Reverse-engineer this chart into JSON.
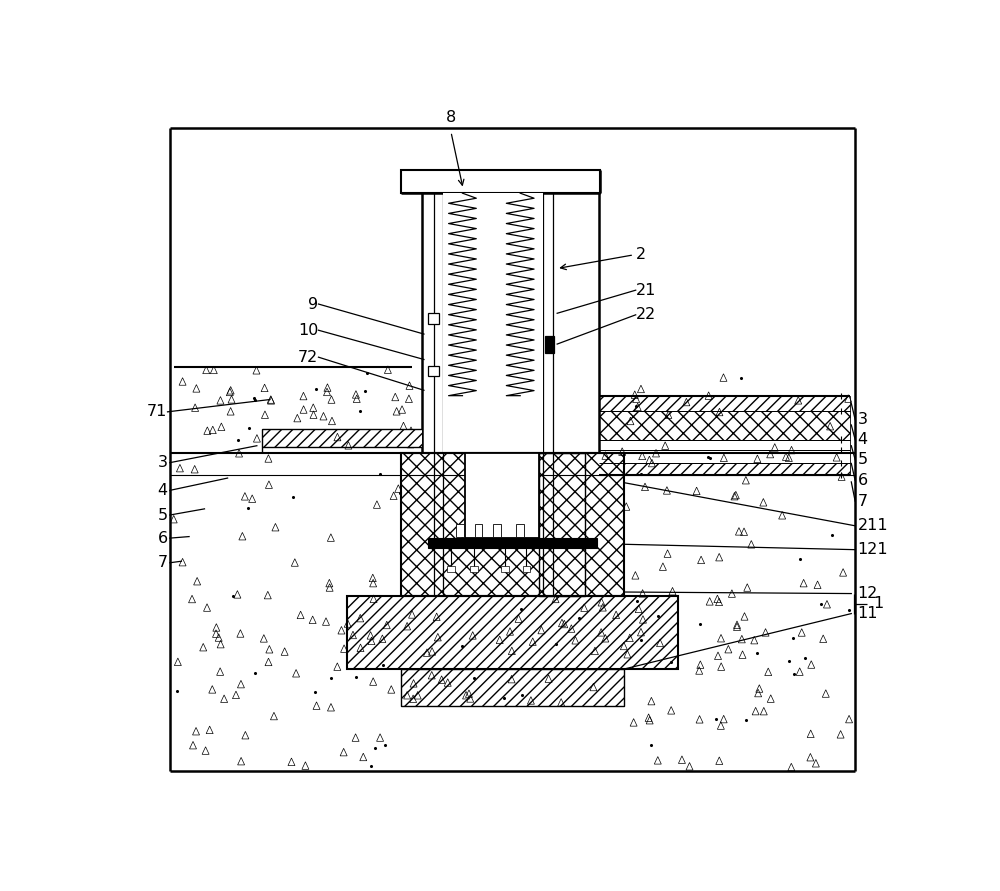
{
  "bg": "#ffffff",
  "lc": "#000000",
  "fig_w": 10.0,
  "fig_h": 8.91,
  "labels_left": [
    [
      "8",
      420,
      28
    ],
    [
      "9",
      248,
      258
    ],
    [
      "10",
      248,
      292
    ],
    [
      "72",
      248,
      328
    ],
    [
      "71",
      52,
      398
    ],
    [
      "3",
      52,
      462
    ],
    [
      "4",
      52,
      498
    ],
    [
      "5",
      52,
      532
    ],
    [
      "6",
      52,
      562
    ],
    [
      "7",
      52,
      594
    ]
  ],
  "labels_right": [
    [
      "2",
      658,
      192
    ],
    [
      "21",
      658,
      240
    ],
    [
      "22",
      658,
      272
    ],
    [
      "3",
      948,
      408
    ],
    [
      "4",
      948,
      436
    ],
    [
      "5",
      948,
      462
    ],
    [
      "6",
      948,
      490
    ],
    [
      "7",
      948,
      518
    ],
    [
      "211",
      948,
      548
    ],
    [
      "121",
      948,
      578
    ],
    [
      "12",
      948,
      632
    ],
    [
      "11",
      948,
      658
    ]
  ]
}
